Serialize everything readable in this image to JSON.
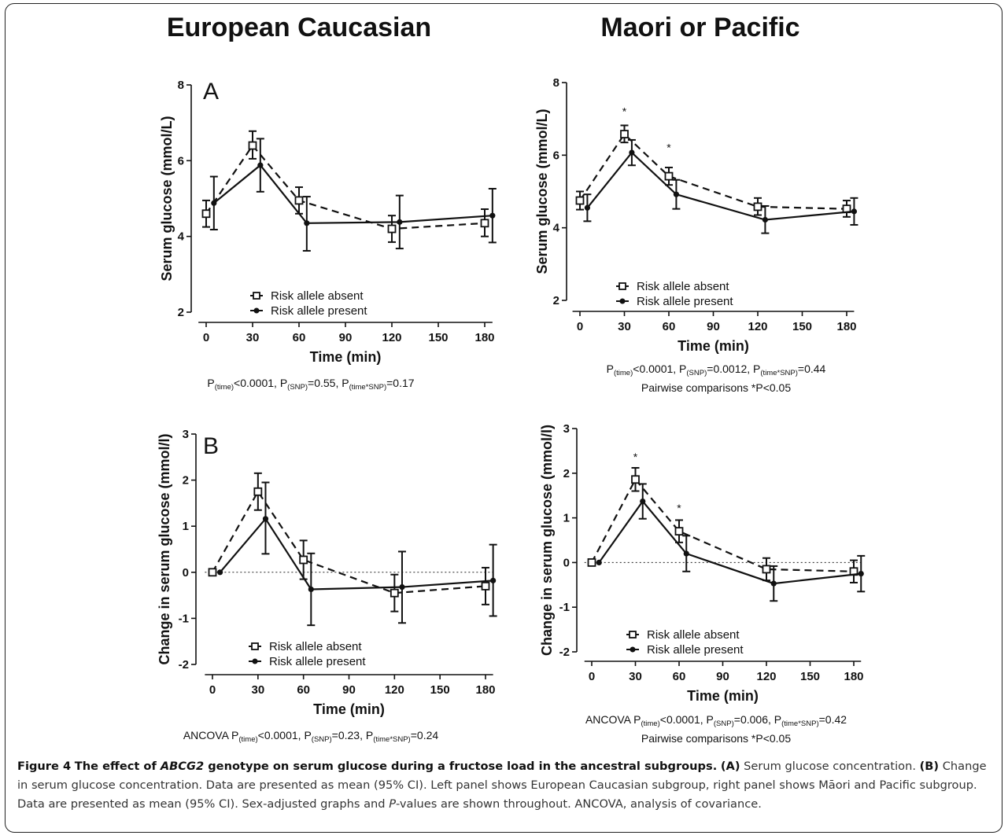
{
  "column_titles": [
    "European Caucasian",
    "Maori or Pacific"
  ],
  "panel_letters": {
    "A": "A",
    "B": "B"
  },
  "legend": {
    "absent": "Risk allele absent",
    "present": "Risk allele present"
  },
  "stats": {
    "A_left": {
      "prefix": "",
      "p_time": "<0.0001",
      "p_snp": "=0.55",
      "p_int": "=0.17",
      "extra": ""
    },
    "A_right": {
      "prefix": "",
      "p_time": "<0.0001",
      "p_snp": "=0.0012",
      "p_int": "=0.44",
      "extra": "Pairwise comparisons *P<0.05"
    },
    "B_left": {
      "prefix": "ANCOVA ",
      "p_time": "<0.0001",
      "p_snp": "=0.23",
      "p_int": "=0.24",
      "extra": ""
    },
    "B_right": {
      "prefix": "ANCOVA ",
      "p_time": "<0.0001",
      "p_snp": "=0.006",
      "p_int": "=0.42",
      "extra": "Pairwise comparisons *P<0.05"
    }
  },
  "stat_labels": {
    "p": "P",
    "time": "(time)",
    "snp": "(SNP)",
    "int": "(time*SNP)"
  },
  "caption": {
    "fig": "Figure 4",
    "title_pre": "The effect of ",
    "gene": "ABCG2",
    "title_post": " genotype on serum glucose during a fructose load in the ancestral subgroups.",
    "a_tag": "(A)",
    "a_text": "Serum glucose concentration.",
    "b_tag": "(B)",
    "b_text": "Change in serum glucose concentration. Data are presented as mean (95% CI). Left panel shows European Caucasian subgroup, right panel shows Māori and Pacific subgroup. Data are presented as mean (95% CI). Sex-adjusted graphs and",
    "p_italic": "P",
    "end_text": "-values are shown throughout. ANCOVA, analysis of covariance."
  },
  "chart_data": [
    {
      "type": "line",
      "panel": "A",
      "group": "European Caucasian",
      "xlabel": "Time (min)",
      "ylabel": "Serum glucose (mmol/L)",
      "x_ticks": [
        0,
        30,
        60,
        90,
        120,
        150,
        180
      ],
      "xlim": [
        -5,
        185
      ],
      "ylim": [
        2,
        8
      ],
      "y_ticks": [
        2,
        4,
        6,
        8
      ],
      "zero_line": false,
      "series": [
        {
          "name": "Risk allele absent",
          "marker": "square",
          "line": "dashed",
          "x": [
            0,
            30,
            60,
            120,
            180
          ],
          "y": [
            4.6,
            6.4,
            4.95,
            4.2,
            4.35
          ],
          "ci_low": [
            4.25,
            6.05,
            4.6,
            3.85,
            4.0
          ],
          "ci_high": [
            4.95,
            6.78,
            5.3,
            4.55,
            4.72
          ]
        },
        {
          "name": "Risk allele present",
          "marker": "circle",
          "line": "solid",
          "x": [
            5,
            35,
            65,
            125,
            185
          ],
          "y": [
            4.88,
            5.88,
            4.35,
            4.38,
            4.55
          ],
          "ci_low": [
            4.18,
            5.18,
            3.62,
            3.68,
            3.84
          ],
          "ci_high": [
            5.58,
            6.58,
            5.05,
            5.08,
            5.26
          ]
        }
      ],
      "significance": []
    },
    {
      "type": "line",
      "panel": "A",
      "group": "Maori or Pacific",
      "xlabel": "Time (min)",
      "ylabel": "Serum glucose (mmol/L)",
      "x_ticks": [
        0,
        30,
        60,
        90,
        120,
        150,
        180
      ],
      "xlim": [
        -5,
        185
      ],
      "ylim": [
        2,
        8
      ],
      "y_ticks": [
        2,
        4,
        6,
        8
      ],
      "zero_line": false,
      "series": [
        {
          "name": "Risk allele absent",
          "marker": "square",
          "line": "dashed",
          "x": [
            0,
            30,
            60,
            120,
            180
          ],
          "y": [
            4.75,
            6.58,
            5.42,
            4.58,
            4.52
          ],
          "ci_low": [
            4.5,
            6.35,
            5.18,
            4.35,
            4.3
          ],
          "ci_high": [
            5.0,
            6.82,
            5.66,
            4.82,
            4.75
          ]
        },
        {
          "name": "Risk allele present",
          "marker": "circle",
          "line": "solid",
          "x": [
            5,
            35,
            65,
            125,
            185
          ],
          "y": [
            4.55,
            6.07,
            4.92,
            4.22,
            4.45
          ],
          "ci_low": [
            4.18,
            5.72,
            4.52,
            3.85,
            4.08
          ],
          "ci_high": [
            4.92,
            6.42,
            5.32,
            4.6,
            4.82
          ]
        }
      ],
      "significance": [
        "*",
        "*"
      ],
      "significance_x": [
        30,
        60
      ],
      "significance_y": [
        7.1,
        6.1
      ]
    },
    {
      "type": "line",
      "panel": "B",
      "group": "European Caucasian",
      "xlabel": "Time (min)",
      "ylabel": "Change in serum glucose (mmol/l)",
      "x_ticks": [
        0,
        30,
        60,
        90,
        120,
        150,
        180
      ],
      "xlim": [
        -5,
        185
      ],
      "ylim": [
        -2,
        3
      ],
      "y_ticks": [
        -2,
        -1,
        0,
        1,
        2,
        3
      ],
      "zero_line": true,
      "series": [
        {
          "name": "Risk allele absent",
          "marker": "square",
          "line": "dashed",
          "x": [
            0,
            30,
            60,
            120,
            180
          ],
          "y": [
            0,
            1.75,
            0.27,
            -0.45,
            -0.3
          ],
          "ci_low": [
            0,
            1.35,
            -0.15,
            -0.85,
            -0.7
          ],
          "ci_high": [
            0,
            2.15,
            0.69,
            -0.05,
            0.1
          ]
        },
        {
          "name": "Risk allele present",
          "marker": "circle",
          "line": "solid",
          "x": [
            5,
            35,
            65,
            125,
            185
          ],
          "y": [
            0,
            1.16,
            -0.37,
            -0.32,
            -0.18
          ],
          "ci_low": [
            0,
            0.4,
            -1.15,
            -1.1,
            -0.95
          ],
          "ci_high": [
            0,
            1.95,
            0.41,
            0.45,
            0.6
          ]
        }
      ],
      "significance": []
    },
    {
      "type": "line",
      "panel": "B",
      "group": "Maori or Pacific",
      "xlabel": "Time (min)",
      "ylabel": "Change in serum glucose (mmol/l)",
      "x_ticks": [
        0,
        30,
        60,
        90,
        120,
        150,
        180
      ],
      "xlim": [
        -5,
        185
      ],
      "ylim": [
        -2,
        3
      ],
      "y_ticks": [
        -2,
        -1,
        0,
        1,
        2,
        3
      ],
      "zero_line": true,
      "series": [
        {
          "name": "Risk allele absent",
          "marker": "square",
          "line": "dashed",
          "x": [
            0,
            30,
            60,
            120,
            180
          ],
          "y": [
            0,
            1.86,
            0.7,
            -0.15,
            -0.2
          ],
          "ci_low": [
            0,
            1.6,
            0.45,
            -0.4,
            -0.45
          ],
          "ci_high": [
            0,
            2.12,
            0.95,
            0.1,
            0.05
          ]
        },
        {
          "name": "Risk allele present",
          "marker": "circle",
          "line": "solid",
          "x": [
            5,
            35,
            65,
            125,
            185
          ],
          "y": [
            0,
            1.37,
            0.2,
            -0.47,
            -0.25
          ],
          "ci_low": [
            0,
            0.98,
            -0.2,
            -0.86,
            -0.65
          ],
          "ci_high": [
            0,
            1.76,
            0.6,
            -0.08,
            0.15
          ]
        }
      ],
      "significance": [
        "*",
        "*"
      ],
      "significance_x": [
        30,
        60
      ],
      "significance_y": [
        2.28,
        1.13
      ]
    }
  ]
}
